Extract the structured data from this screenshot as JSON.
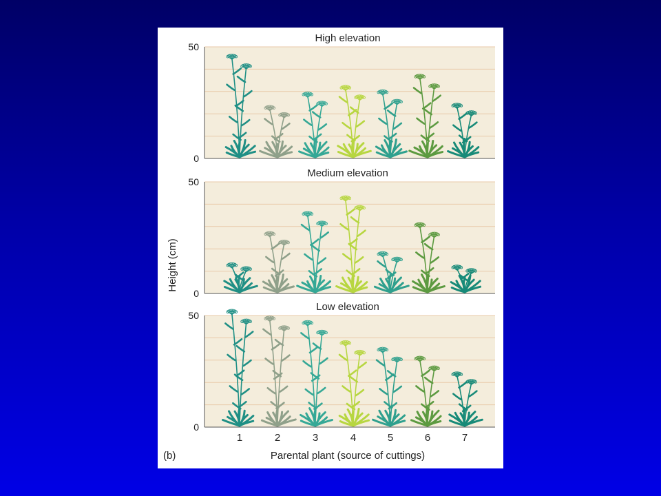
{
  "figure": {
    "panel_letter": "(b)",
    "y_axis_label": "Height (cm)",
    "x_axis_label": "Parental plant (source of cuttings)",
    "y_ticks": [
      "0",
      "50"
    ],
    "y_max": 50,
    "plant_ids": [
      "1",
      "2",
      "3",
      "4",
      "5",
      "6",
      "7"
    ],
    "plant_colors": [
      "#1f8f85",
      "#8fa08a",
      "#35a896",
      "#b7d640",
      "#2fa08e",
      "#5c9a40",
      "#178a78"
    ],
    "panels": [
      {
        "title": "High elevation",
        "heights_cm": [
          45,
          22,
          28,
          31,
          29,
          36,
          23
        ]
      },
      {
        "title": "Medium elevation",
        "heights_cm": [
          12,
          26,
          35,
          42,
          17,
          30,
          11
        ]
      },
      {
        "title": "Low elevation",
        "heights_cm": [
          51,
          48,
          46,
          37,
          34,
          30,
          23
        ]
      }
    ]
  },
  "colors": {
    "panel_bg": "#f4eddc",
    "grid_line": "#e8c9a8",
    "axis_line": "#555555"
  }
}
